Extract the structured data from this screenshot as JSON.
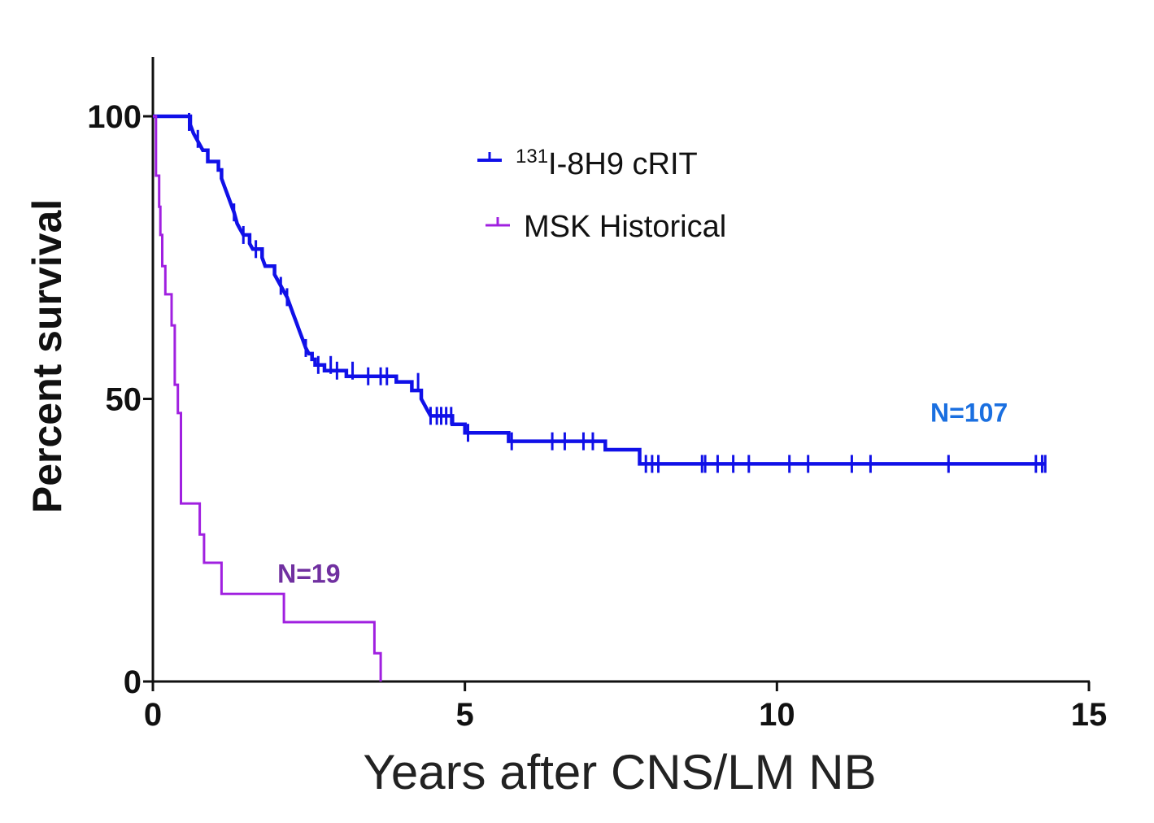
{
  "chart_data": {
    "type": "line",
    "subtype": "kaplan-meier-survival",
    "xlabel": "Years after CNS/LM NB",
    "ylabel": "Percent survival",
    "xlim": [
      0,
      15
    ],
    "ylim": [
      0,
      100
    ],
    "xticks": [
      "0",
      "5",
      "10",
      "15"
    ],
    "yticks": [
      "0",
      "50",
      "100"
    ],
    "grid": false,
    "legend_position": "top-center",
    "series": [
      {
        "name": "131I-8H9 cRIT",
        "legend_sup": "131",
        "legend_main": "I-8H9 cRIT",
        "color": "#1010e8",
        "n_label": "N=107",
        "n_label_color": "#1a6fe0",
        "steps": [
          [
            0,
            100
          ],
          [
            0.6,
            100
          ],
          [
            0.6,
            98.5
          ],
          [
            0.65,
            97
          ],
          [
            0.7,
            96
          ],
          [
            0.75,
            95
          ],
          [
            0.8,
            94
          ],
          [
            0.88,
            94
          ],
          [
            0.88,
            92
          ],
          [
            1.05,
            92
          ],
          [
            1.05,
            90.5
          ],
          [
            1.1,
            90.5
          ],
          [
            1.1,
            89
          ],
          [
            1.15,
            87.5
          ],
          [
            1.2,
            86
          ],
          [
            1.25,
            84.5
          ],
          [
            1.3,
            83
          ],
          [
            1.35,
            81
          ],
          [
            1.4,
            80
          ],
          [
            1.45,
            79
          ],
          [
            1.55,
            79
          ],
          [
            1.55,
            77.5
          ],
          [
            1.6,
            76.5
          ],
          [
            1.75,
            76.5
          ],
          [
            1.75,
            75
          ],
          [
            1.8,
            73.5
          ],
          [
            1.95,
            73.5
          ],
          [
            1.95,
            72
          ],
          [
            2.0,
            71
          ],
          [
            2.05,
            70
          ],
          [
            2.1,
            69
          ],
          [
            2.15,
            68
          ],
          [
            2.2,
            66.5
          ],
          [
            2.25,
            65
          ],
          [
            2.3,
            63.5
          ],
          [
            2.35,
            62
          ],
          [
            2.4,
            60.5
          ],
          [
            2.45,
            59
          ],
          [
            2.5,
            58
          ],
          [
            2.55,
            58
          ],
          [
            2.55,
            57
          ],
          [
            2.6,
            57
          ],
          [
            2.6,
            56
          ],
          [
            2.75,
            56
          ],
          [
            2.75,
            55
          ],
          [
            3.1,
            55
          ],
          [
            3.1,
            54
          ],
          [
            3.9,
            54
          ],
          [
            3.9,
            53
          ],
          [
            4.15,
            53
          ],
          [
            4.15,
            51.5
          ],
          [
            4.3,
            51.5
          ],
          [
            4.3,
            50
          ],
          [
            4.35,
            49
          ],
          [
            4.4,
            48
          ],
          [
            4.45,
            47
          ],
          [
            4.8,
            47
          ],
          [
            4.8,
            45.5
          ],
          [
            5.0,
            45.5
          ],
          [
            5.0,
            44
          ],
          [
            5.7,
            44
          ],
          [
            5.7,
            42.5
          ],
          [
            7.25,
            42.5
          ],
          [
            7.25,
            41
          ],
          [
            7.8,
            41
          ],
          [
            7.8,
            38.5
          ],
          [
            14.3,
            38.5
          ]
        ],
        "censored": [
          [
            0.58,
            99
          ],
          [
            0.72,
            96
          ],
          [
            1.3,
            83
          ],
          [
            1.45,
            79
          ],
          [
            1.65,
            76.5
          ],
          [
            2.05,
            70
          ],
          [
            2.15,
            68
          ],
          [
            2.45,
            59
          ],
          [
            2.65,
            56
          ],
          [
            2.85,
            56
          ],
          [
            2.95,
            55
          ],
          [
            3.2,
            55
          ],
          [
            3.45,
            54
          ],
          [
            3.65,
            54
          ],
          [
            3.75,
            54
          ],
          [
            4.25,
            53
          ],
          [
            4.45,
            47
          ],
          [
            4.55,
            47
          ],
          [
            4.62,
            47
          ],
          [
            4.7,
            47
          ],
          [
            4.78,
            47
          ],
          [
            5.05,
            44
          ],
          [
            5.75,
            42.5
          ],
          [
            6.4,
            42.5
          ],
          [
            6.6,
            42.5
          ],
          [
            6.9,
            42.5
          ],
          [
            7.05,
            42.5
          ],
          [
            7.9,
            38.5
          ],
          [
            8.0,
            38.5
          ],
          [
            8.1,
            38.5
          ],
          [
            8.8,
            38.5
          ],
          [
            8.85,
            38.5
          ],
          [
            9.05,
            38.5
          ],
          [
            9.3,
            38.5
          ],
          [
            9.55,
            38.5
          ],
          [
            10.2,
            38.5
          ],
          [
            10.5,
            38.5
          ],
          [
            11.2,
            38.5
          ],
          [
            11.5,
            38.5
          ],
          [
            12.75,
            38.5
          ],
          [
            14.15,
            38.5
          ],
          [
            14.25,
            38.5
          ],
          [
            14.3,
            38.5
          ]
        ]
      },
      {
        "name": "MSK Historical",
        "color": "#a020e0",
        "n_label": "N=19",
        "n_label_color": "#7030a0",
        "steps": [
          [
            0,
            100
          ],
          [
            0.05,
            100
          ],
          [
            0.05,
            89.5
          ],
          [
            0.1,
            89.5
          ],
          [
            0.1,
            84
          ],
          [
            0.12,
            84
          ],
          [
            0.12,
            79
          ],
          [
            0.15,
            79
          ],
          [
            0.15,
            73.5
          ],
          [
            0.2,
            73.5
          ],
          [
            0.2,
            68.5
          ],
          [
            0.3,
            68.5
          ],
          [
            0.3,
            63
          ],
          [
            0.35,
            63
          ],
          [
            0.35,
            52.5
          ],
          [
            0.4,
            52.5
          ],
          [
            0.4,
            47.5
          ],
          [
            0.45,
            47.5
          ],
          [
            0.45,
            31.5
          ],
          [
            0.75,
            31.5
          ],
          [
            0.75,
            26
          ],
          [
            0.82,
            26
          ],
          [
            0.82,
            21
          ],
          [
            1.1,
            21
          ],
          [
            1.1,
            15.5
          ],
          [
            2.1,
            15.5
          ],
          [
            2.1,
            10.5
          ],
          [
            3.55,
            10.5
          ],
          [
            3.55,
            5
          ],
          [
            3.65,
            5
          ],
          [
            3.65,
            0
          ]
        ],
        "censored": []
      }
    ]
  }
}
